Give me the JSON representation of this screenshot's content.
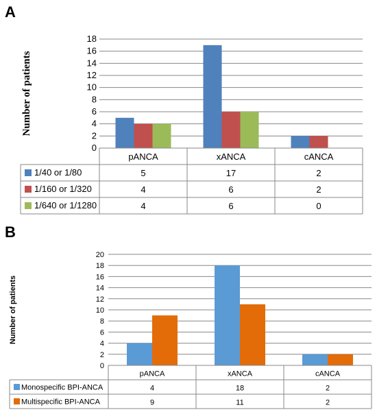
{
  "chart_data": [
    {
      "panel": "A",
      "type": "bar",
      "categories": [
        "pANCA",
        "xANCA",
        "cANCA"
      ],
      "series": [
        {
          "name": "1/40 or 1/80",
          "values": [
            5,
            17,
            2
          ],
          "color": "#4f81bd"
        },
        {
          "name": "1/160 or 1/320",
          "values": [
            4,
            6,
            2
          ],
          "color": "#c0504d"
        },
        {
          "name": "1/640 or 1/1280",
          "values": [
            4,
            6,
            0
          ],
          "color": "#9bbb59"
        }
      ],
      "ylabel": "Number of patients",
      "ylim": [
        0,
        18
      ],
      "yticks": [
        0,
        2,
        4,
        6,
        8,
        10,
        12,
        14,
        16,
        18
      ],
      "grid": true,
      "legend": "data-table"
    },
    {
      "panel": "B",
      "type": "bar",
      "categories": [
        "pANCA",
        "xANCA",
        "cANCA"
      ],
      "series": [
        {
          "name": "Monospecific BPI-ANCA",
          "values": [
            4,
            18,
            2
          ],
          "color": "#5b9bd5"
        },
        {
          "name": "Multispecific BPI-ANCA",
          "values": [
            9,
            11,
            2
          ],
          "color": "#e36c09"
        }
      ],
      "ylabel": "Number of patients",
      "ylim": [
        0,
        20
      ],
      "yticks": [
        0,
        2,
        4,
        6,
        8,
        10,
        12,
        14,
        16,
        18,
        20
      ],
      "grid": true,
      "legend": "data-table"
    }
  ]
}
